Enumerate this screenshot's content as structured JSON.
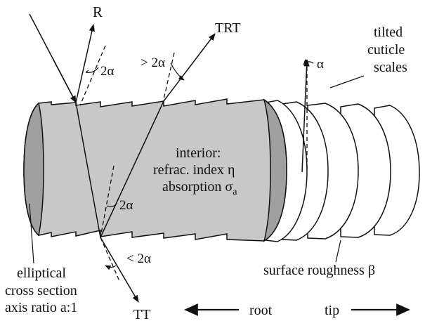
{
  "labels": {
    "R": "R",
    "TRT": "TRT",
    "TT": "TT",
    "angle_R": "2α",
    "angle_TRT": "> 2α",
    "angle_inner": "2α",
    "angle_TT": "< 2α",
    "angle_scale": "α",
    "interior_1": "interior:",
    "interior_2": "refrac. index η",
    "interior_3": "absorption σ",
    "interior_3_sub": "a",
    "tilted_1": "tilted",
    "tilted_2": "cuticle",
    "tilted_3": "scales",
    "roughness": "surface roughness β",
    "elliptical_1": "elliptical",
    "elliptical_2": "cross section",
    "elliptical_3": "axis ratio a:1",
    "root": "root",
    "tip": "tip"
  },
  "colors": {
    "interior_fill": "#c8c8c8",
    "end_cap_fill": "#a0a0a0",
    "stroke": "#111111",
    "background": "#ffffff"
  }
}
